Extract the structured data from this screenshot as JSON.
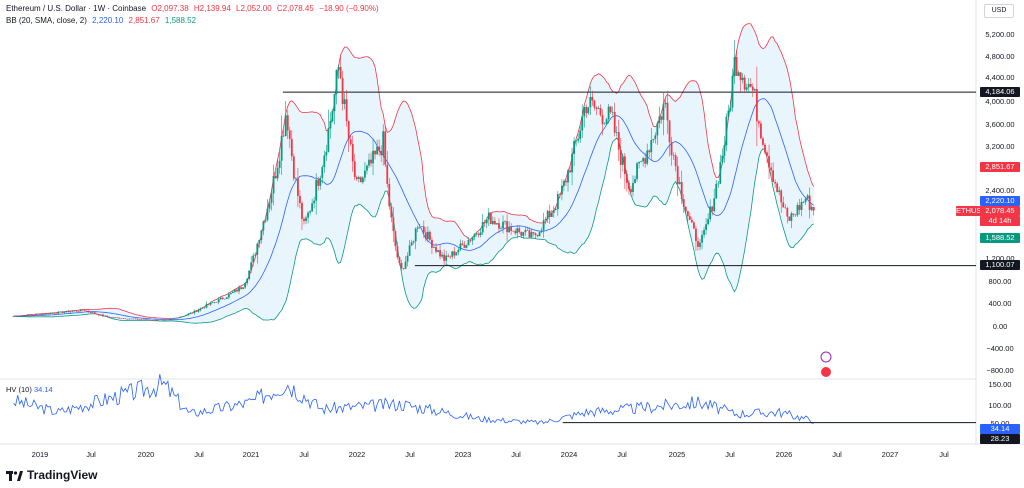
{
  "header": {
    "symbol": "Ethereum / U.S. Dollar · 1W · Coinbase",
    "open": "O2,097.38",
    "high": "H2,139.94",
    "low": "L2,052.00",
    "close": "C2,078.45",
    "change": "−18.90 (−0.90%)",
    "bb_label": "BB (20, SMA, close, 2)",
    "bb_basis": "2,220.10",
    "bb_upper": "2,851.67",
    "bb_lower": "1,588.52"
  },
  "currency_button": "USD",
  "price_axis": [
    "5,200.00",
    "4,800.00",
    "4,400.00",
    "4,000.00",
    "3,600.00",
    "3,200.00",
    "2,400.00",
    "1,200.00",
    "800.00",
    "400.00",
    "0.00",
    "−400.00",
    "−800.00"
  ],
  "tags": {
    "resistance": "4,184.06",
    "bb_upper": "2,851.67",
    "bb_basis": "2,220.10",
    "symbol": "ETHUSD",
    "price": "2,078.45",
    "countdown": "4d 14h",
    "bb_lower": "1,588.52",
    "support": "1,100.07"
  },
  "hv": {
    "label": "HV (10)",
    "value": "34.14",
    "axis": [
      "150.00",
      "100.00",
      "50.00"
    ],
    "value_tag": "34.14",
    "support_tag": "28.23"
  },
  "time_axis": [
    "2019",
    "Jul",
    "2020",
    "Jul",
    "2021",
    "Jul",
    "2022",
    "Jul",
    "2023",
    "Jul",
    "2024",
    "Jul",
    "2025",
    "Jul",
    "2026",
    "Jul",
    "2027",
    "Jul"
  ],
  "brand": "TradingView",
  "colors": {
    "up": "#089981",
    "down": "#f23645",
    "basis": "#2962ff",
    "band_fill": "#e3f2fd",
    "upper": "#f23645",
    "lower": "#089981",
    "hv_line": "#2962ff"
  },
  "chart_data": {
    "type": "candlestick",
    "ylim": [
      -800,
      5400
    ],
    "levels": {
      "resistance": 4184.06,
      "support": 1100.07
    },
    "anchors": [
      [
        "2018-10",
        200
      ],
      [
        "2019-06",
        310
      ],
      [
        "2019-09",
        180
      ],
      [
        "2020-03",
        120
      ],
      [
        "2020-08",
        400
      ],
      [
        "2020-12",
        730
      ],
      [
        "2021-02",
        1700
      ],
      [
        "2021-05",
        3900
      ],
      [
        "2021-07",
        1800
      ],
      [
        "2021-11",
        4700
      ],
      [
        "2022-01",
        2500
      ],
      [
        "2022-04",
        3300
      ],
      [
        "2022-06",
        1000
      ],
      [
        "2022-08",
        1900
      ],
      [
        "2022-11",
        1200
      ],
      [
        "2023-04",
        1950
      ],
      [
        "2023-09",
        1600
      ],
      [
        "2023-12",
        2300
      ],
      [
        "2024-03",
        4000
      ],
      [
        "2024-06",
        3700
      ],
      [
        "2024-08",
        2500
      ],
      [
        "2024-12",
        4000
      ],
      [
        "2025-03",
        1800
      ],
      [
        "2025-04",
        1450
      ],
      [
        "2025-08",
        4800
      ],
      [
        "2025-10",
        4200
      ],
      [
        "2025-12",
        2900
      ],
      [
        "2026-02",
        1900
      ],
      [
        "2026-04",
        2300
      ],
      [
        "2026-05",
        2078
      ]
    ],
    "hv_anchors": [
      [
        "2018-10",
        95
      ],
      [
        "2019-03",
        60
      ],
      [
        "2020-03",
        145
      ],
      [
        "2020-06",
        55
      ],
      [
        "2021-01",
        90
      ],
      [
        "2021-05",
        150
      ],
      [
        "2021-09",
        70
      ],
      [
        "2022-06",
        85
      ],
      [
        "2023-03",
        40
      ],
      [
        "2023-10",
        28
      ],
      [
        "2024-03",
        60
      ],
      [
        "2024-08",
        70
      ],
      [
        "2025-04",
        90
      ],
      [
        "2025-08",
        55
      ],
      [
        "2026-01",
        60
      ],
      [
        "2026-05",
        34
      ]
    ]
  }
}
